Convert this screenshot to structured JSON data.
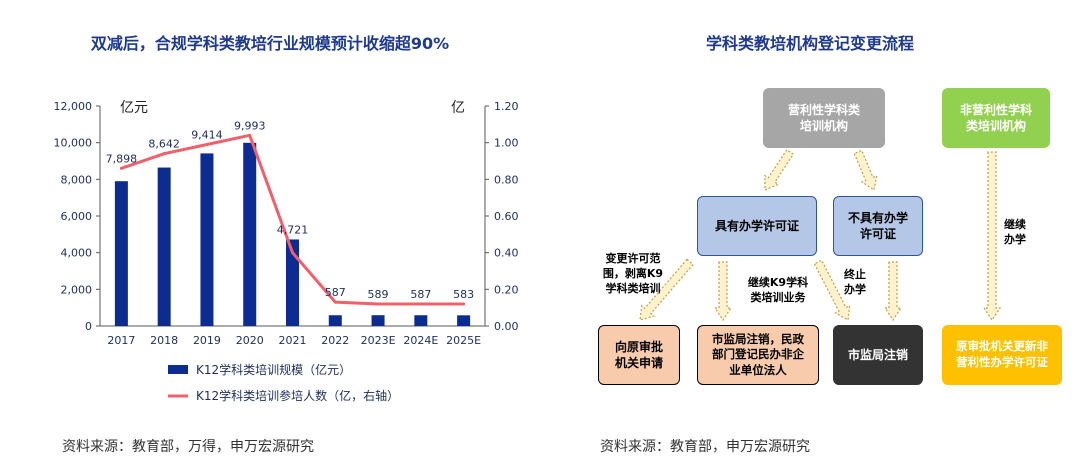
{
  "left": {
    "title": "双减后，合规学科类教培行业规模预计收缩超90%",
    "source": "资料来源：教育部，万得，申万宏源研究"
  },
  "right": {
    "title": "学科类教培机构登记变更流程",
    "source": "资料来源：教育部，申万宏源研究"
  },
  "chart_data": {
    "type": "bar",
    "categories": [
      "2017",
      "2018",
      "2019",
      "2020",
      "2021",
      "2022",
      "2023E",
      "2024E",
      "2025E"
    ],
    "series": [
      {
        "name": "K12学科类培训规模（亿元）",
        "type": "bar",
        "axis": "left",
        "values": [
          7898,
          8642,
          9414,
          9993,
          4721,
          587,
          589,
          587,
          583
        ],
        "color": "#0d2c8f"
      },
      {
        "name": "K12学科类培训参培人数（亿，右轴）",
        "type": "line",
        "axis": "right",
        "values": [
          0.86,
          0.94,
          0.99,
          1.04,
          0.4,
          0.13,
          0.12,
          0.12,
          0.12
        ],
        "color": "#f0606a"
      }
    ],
    "data_labels": [
      "7,898",
      "8,642",
      "9,414",
      "9,993",
      "4,721",
      "587",
      "589",
      "587",
      "583"
    ],
    "ylabel_left": "亿元",
    "ylabel_right": "亿",
    "ylim_left": [
      0,
      12000
    ],
    "ylim_right": [
      0,
      1.2
    ],
    "yticks_left": [
      "0",
      "2,000",
      "4,000",
      "6,000",
      "8,000",
      "10,000",
      "12,000"
    ],
    "yticks_right": [
      "0.00",
      "0.20",
      "0.40",
      "0.60",
      "0.80",
      "1.00",
      "1.20"
    ],
    "grid": false,
    "legend": "bottom"
  },
  "flow": {
    "nodes": {
      "for_profit": "营利性学科类\n培训机构",
      "non_profit": "非营利性学科\n类培训机构",
      "has_license": "具有办学许可证",
      "no_license": "不具有办学\n许可证",
      "apply": "向原审批\n机关申请",
      "register": "市监局注销，民政\n部门登记民办非企\n业单位法人",
      "cancel": "市监局注销",
      "new_license": "原审批机关更新非\n营利性办学许可证"
    },
    "edge_labels": {
      "change_scope": "变更许可范\n围，剥离K9\n学科类培训",
      "continue_k9": "继续K9学科\n类培训业务",
      "terminate": "终止\n办学",
      "continue": "继续\n办学"
    },
    "colors": {
      "gray": "#a6a6a6",
      "green": "#92d050",
      "blue": "#b4c7e7",
      "peach": "#f8cbad",
      "dark": "#333333",
      "gold": "#ffc000",
      "arrow_fill": "#fff2cc",
      "arrow_stroke": "#b8a14a"
    }
  }
}
